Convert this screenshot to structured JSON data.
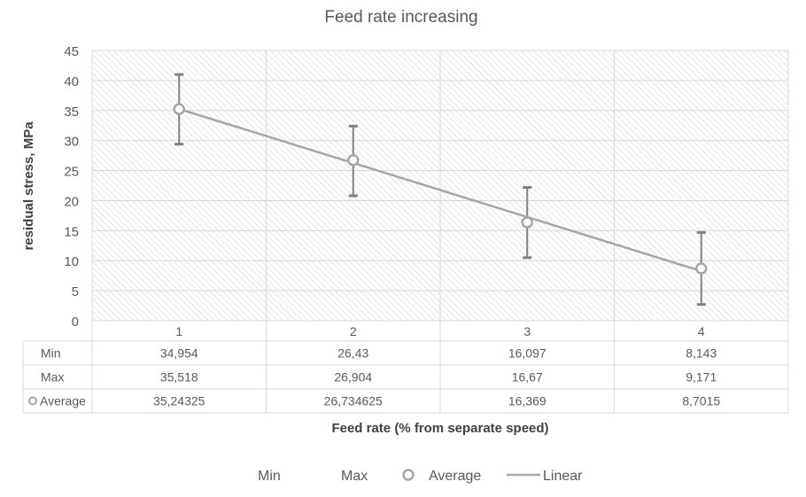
{
  "chart_data": {
    "type": "line",
    "title": "Feed rate increasing",
    "xlabel": "Feed rate (% from separate speed)",
    "ylabel": "residual stress, MPa",
    "categories": [
      "1",
      "2",
      "3",
      "4"
    ],
    "ylim": [
      0,
      45
    ],
    "yticks": [
      "0",
      "5",
      "10",
      "15",
      "20",
      "25",
      "30",
      "35",
      "40",
      "45"
    ],
    "grid": true,
    "series": [
      {
        "name": "Min",
        "values": [
          34.954,
          26.43,
          16.097,
          8.143
        ]
      },
      {
        "name": "Max",
        "values": [
          35.518,
          26.904,
          16.67,
          9.171
        ]
      },
      {
        "name": "Average",
        "values": [
          35.24325,
          26.734625,
          16.369,
          8.7015
        ]
      }
    ],
    "table_text": {
      "Min": [
        "34,954",
        "26,43",
        "16,097",
        "8,143"
      ],
      "Max": [
        "35,518",
        "26,904",
        "16,67",
        "9,171"
      ],
      "Average": [
        "35,24325",
        "26,734625",
        "16,369",
        "8,7015"
      ]
    },
    "error_bars": {
      "upper": [
        41.0,
        32.4,
        22.2,
        14.7
      ],
      "lower": [
        29.4,
        20.8,
        10.5,
        2.7
      ]
    },
    "trendline": {
      "name": "Linear",
      "type": "linear",
      "series": "Average"
    },
    "legend": {
      "position": "bottom",
      "entries": [
        "Min",
        "Max",
        "Average",
        "Linear"
      ]
    },
    "colors": {
      "series": "#a6a6a6",
      "error": "#808080",
      "grid": "#d9d9d9",
      "text": "#595959",
      "table_border": "#d9d9d9",
      "title": "#595959"
    }
  }
}
